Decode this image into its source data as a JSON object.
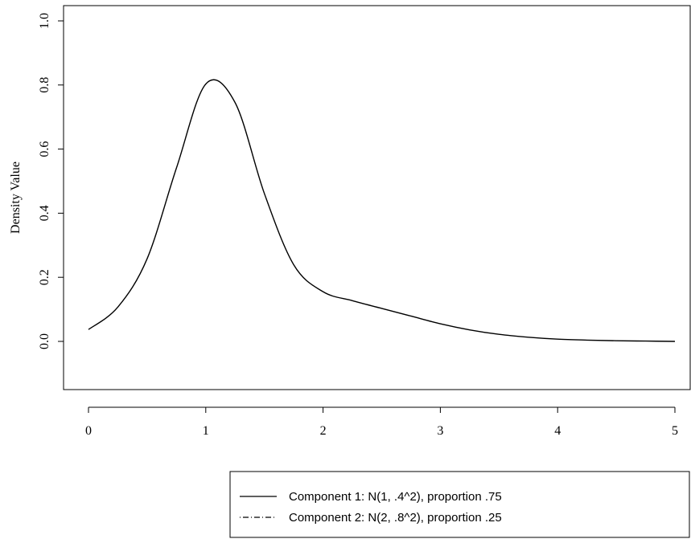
{
  "chart_data": {
    "type": "line",
    "title": "",
    "xlabel": "",
    "ylabel": "Density Value",
    "xlim": [
      0,
      5
    ],
    "ylim": [
      -0.1,
      1.0
    ],
    "x_ticks": [
      "0",
      "1",
      "2",
      "3",
      "4",
      "5"
    ],
    "y_ticks": [
      "0.0",
      "0.2",
      "0.4",
      "0.6",
      "0.8",
      "1.0"
    ],
    "grid": false,
    "legend_position": "bottom-right",
    "series": [
      {
        "name": "Component 1: N(1, .4^2), proportion .75",
        "line_style": "solid",
        "x": [
          0,
          0.25,
          0.5,
          0.75,
          1.0,
          1.25,
          1.5,
          1.75,
          2.0,
          2.25,
          2.5,
          2.75,
          3.0,
          3.25,
          3.5,
          3.75,
          4.0,
          4.25,
          4.5,
          4.75,
          5.0
        ],
        "y": [
          0.037,
          0.107,
          0.258,
          0.541,
          0.803,
          0.745,
          0.461,
          0.239,
          0.155,
          0.127,
          0.103,
          0.079,
          0.055,
          0.036,
          0.022,
          0.013,
          0.007,
          0.004,
          0.002,
          0.001,
          0.0
        ]
      },
      {
        "name": "Component 2: N(2, .8^2), proportion .25",
        "line_style": "dot-dash",
        "x": [],
        "y": []
      }
    ]
  }
}
